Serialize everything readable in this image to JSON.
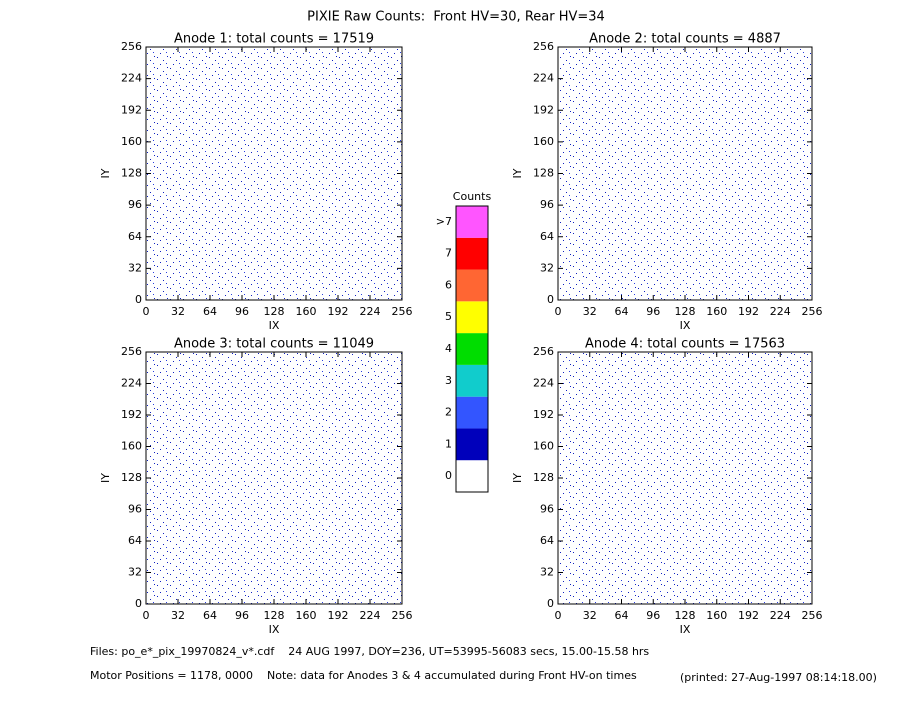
{
  "header": {
    "title": "PIXIE Raw Counts:  Front HV=30, Rear HV=34"
  },
  "chart_data": [
    {
      "type": "heatmap",
      "title": "Anode 1: total counts = 17519",
      "x_label": "IX",
      "y_label": "IY",
      "xlim": [
        0,
        256
      ],
      "ylim": [
        0,
        256
      ],
      "xticks": [
        0,
        32,
        64,
        96,
        128,
        160,
        192,
        224,
        256
      ],
      "yticks": [
        0,
        32,
        64,
        96,
        128,
        160,
        192,
        224,
        256
      ]
    },
    {
      "type": "heatmap",
      "title": "Anode 2: total counts = 4887",
      "x_label": "IX",
      "y_label": "IY",
      "xlim": [
        0,
        256
      ],
      "ylim": [
        0,
        256
      ],
      "xticks": [
        0,
        32,
        64,
        96,
        128,
        160,
        192,
        224,
        256
      ],
      "yticks": [
        0,
        32,
        64,
        96,
        128,
        160,
        192,
        224,
        256
      ]
    },
    {
      "type": "heatmap",
      "title": "Anode 3: total counts = 11049",
      "x_label": "IX",
      "y_label": "IY",
      "xlim": [
        0,
        256
      ],
      "ylim": [
        0,
        256
      ],
      "xticks": [
        0,
        32,
        64,
        96,
        128,
        160,
        192,
        224,
        256
      ],
      "yticks": [
        0,
        32,
        64,
        96,
        128,
        160,
        192,
        224,
        256
      ]
    },
    {
      "type": "heatmap",
      "title": "Anode 4: total counts = 17563",
      "x_label": "IX",
      "y_label": "IY",
      "xlim": [
        0,
        256
      ],
      "ylim": [
        0,
        256
      ],
      "xticks": [
        0,
        32,
        64,
        96,
        128,
        160,
        192,
        224,
        256
      ],
      "yticks": [
        0,
        32,
        64,
        96,
        128,
        160,
        192,
        224,
        256
      ]
    }
  ],
  "colorbar": {
    "title": "Counts",
    "levels": [
      {
        "label": "0",
        "color": "#ffffff"
      },
      {
        "label": "1",
        "color": "#0000bb"
      },
      {
        "label": "2",
        "color": "#3355ff"
      },
      {
        "label": "3",
        "color": "#11cccc"
      },
      {
        "label": "4",
        "color": "#00dd00"
      },
      {
        "label": "5",
        "color": "#ffff00"
      },
      {
        "label": "6",
        "color": "#ff6633"
      },
      {
        "label": "7",
        "color": "#ff0000"
      },
      {
        "label": ">7",
        "color": "#ff55ff"
      }
    ]
  },
  "footer": {
    "files": "Files: po_e*_pix_19970824_v*.cdf    24 AUG 1997, DOY=236, UT=53995-56083 secs, 15.00-15.58 hrs",
    "motor": "Motor Positions = 1178, 0000    Note: data for Anodes 3 & 4 accumulated during Front HV-on times",
    "printed": "(printed: 27-Aug-1997 08:14:18.00)"
  }
}
